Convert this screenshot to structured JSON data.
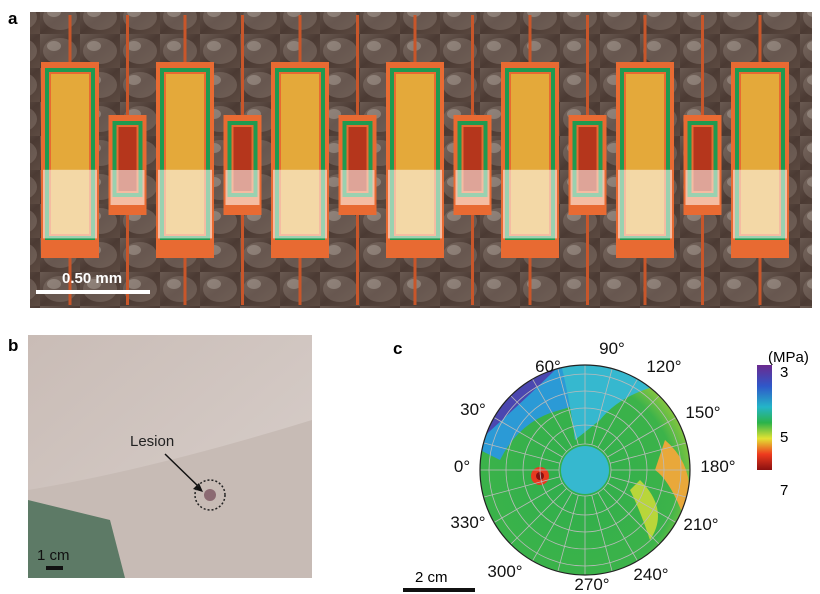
{
  "panels": {
    "a": {
      "label": "a",
      "scale_bar": "0.50 mm"
    },
    "b": {
      "label": "b",
      "annotation": "Lesion",
      "scale_bar": "1 cm"
    },
    "c": {
      "label": "c",
      "angle_labels": [
        "90°",
        "120°",
        "60°",
        "30°",
        "150°",
        "0°",
        "180°",
        "330°",
        "210°",
        "300°",
        "270°",
        "240°"
      ],
      "colorbar": {
        "unit": "(MPa)",
        "ticks": [
          "3",
          "5",
          "7"
        ]
      },
      "scale_bar": "2 cm"
    }
  }
}
